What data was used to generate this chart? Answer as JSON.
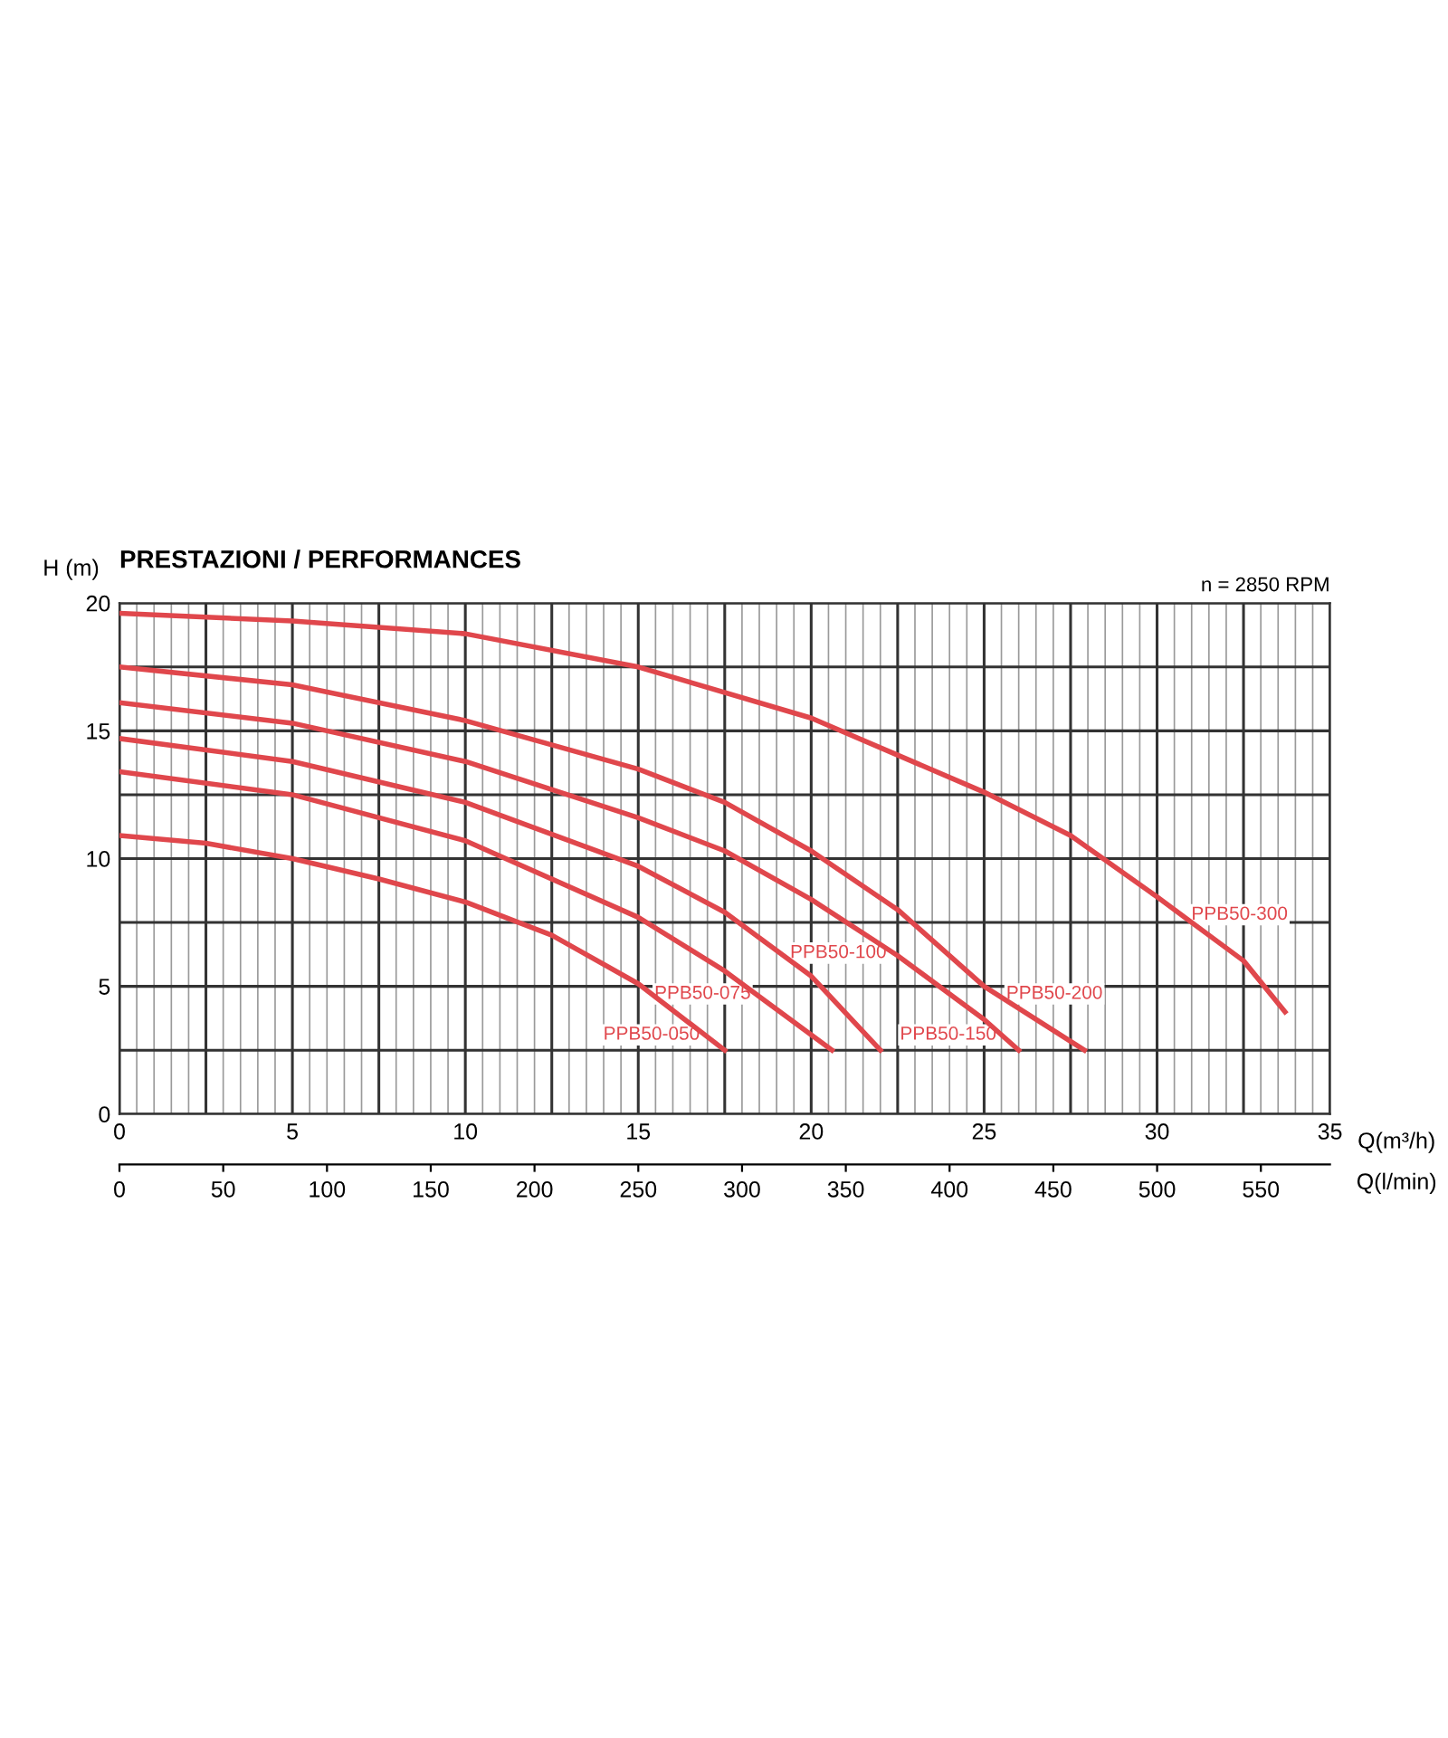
{
  "chart_data": {
    "type": "line",
    "title": "PRESTAZIONI / PERFORMANCES",
    "subtitle": "n = 2850 RPM",
    "ylabel": "H (m)",
    "xlabel": "Q(m³/h)",
    "x2label": "Q(l/min)",
    "xlim": [
      0,
      35
    ],
    "xticks": [
      0,
      {
        "value": 2.5,
        "label": null
      },
      5,
      {
        "value": 7.5,
        "label": null
      },
      10,
      {
        "value": 12.5,
        "label": null
      },
      15,
      {
        "value": 17.5,
        "label": null
      },
      20,
      {
        "value": 22.5,
        "label": null
      },
      25,
      {
        "value": 27.5,
        "label": null
      },
      30,
      {
        "value": 32.5,
        "label": null
      },
      35
    ],
    "ylim": [
      0,
      20
    ],
    "yticks": [
      0,
      {
        "value": 2.5,
        "label": null
      },
      5,
      {
        "value": 7.5,
        "label": null
      },
      10,
      {
        "value": 12.5,
        "label": null
      },
      15,
      {
        "value": 17.5,
        "label": null
      },
      20
    ],
    "x2lim": [
      0,
      583.3
    ],
    "x2ticks": [
      0,
      50,
      100,
      150,
      200,
      250,
      300,
      350,
      400,
      450,
      500,
      550
    ],
    "grid": true,
    "legend": false,
    "marker": "none",
    "line_style": "solid",
    "series": [
      {
        "name": "PPB50-050",
        "color": "#e0474c",
        "x": [
          0,
          2.5,
          5,
          7.5,
          10,
          12.5,
          15,
          17.5
        ],
        "values": [
          10.9,
          10.6,
          10.0,
          9.2,
          8.3,
          7.0,
          5.1,
          2.5
        ]
      },
      {
        "name": "PPB50-075",
        "color": "#e0474c",
        "x": [
          0,
          5,
          10,
          15,
          17.5,
          20.6
        ],
        "values": [
          13.4,
          12.5,
          10.7,
          7.7,
          5.6,
          2.5
        ]
      },
      {
        "name": "PPB50-100",
        "color": "#e0474c",
        "x": [
          0,
          5,
          10,
          15,
          17.5,
          20,
          22
        ],
        "values": [
          14.7,
          13.8,
          12.2,
          9.7,
          7.9,
          5.4,
          2.5
        ]
      },
      {
        "name": "PPB50-150",
        "color": "#e0474c",
        "x": [
          0,
          5,
          10,
          15,
          17.5,
          20,
          22.5,
          25,
          26
        ],
        "values": [
          16.1,
          15.3,
          13.8,
          11.6,
          10.3,
          8.4,
          6.2,
          3.7,
          2.5
        ]
      },
      {
        "name": "PPB50-200",
        "color": "#e0474c",
        "x": [
          0,
          5,
          10,
          15,
          17.5,
          20,
          22.5,
          25,
          27.9
        ],
        "values": [
          17.5,
          16.8,
          15.4,
          13.5,
          12.2,
          10.3,
          8.0,
          5.0,
          2.5
        ]
      },
      {
        "name": "PPB50-300",
        "color": "#e0474c",
        "x": [
          0,
          5,
          10,
          15,
          20,
          25,
          27.5,
          30,
          32.5,
          33.7
        ],
        "values": [
          19.6,
          19.3,
          18.8,
          17.5,
          15.5,
          12.6,
          10.9,
          8.5,
          6.0,
          4.0
        ]
      }
    ]
  }
}
